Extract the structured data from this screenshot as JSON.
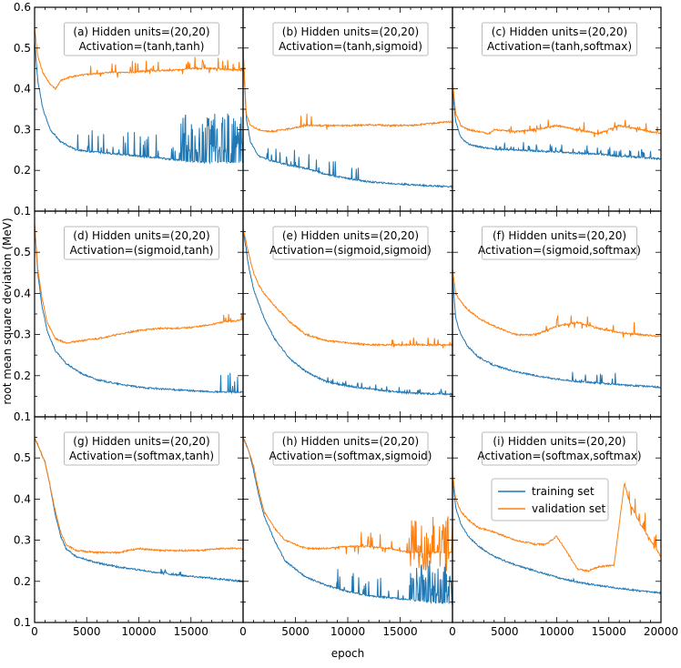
{
  "figure": {
    "ylabel": "root mean square deviation (MeV)",
    "xlabel": "epoch",
    "xticks": [
      "0",
      "5000",
      "10000",
      "15000",
      "20000"
    ],
    "yticks": [
      "0.1",
      "0.2",
      "0.3",
      "0.4",
      "0.5",
      "0.6"
    ],
    "legend": [
      "training set",
      "validation set"
    ],
    "colors": {
      "training": "#1f77b4",
      "validation": "#ff7f0e"
    }
  },
  "chart_data": [
    {
      "type": "line",
      "panel": "(a)",
      "annotation": [
        "(a) Hidden units=(20,20)",
        "Activation=(tanh,tanh)"
      ],
      "xlim": [
        0,
        20000
      ],
      "ylim": [
        0.1,
        0.6
      ],
      "series": [
        {
          "name": "training set",
          "x": [
            0,
            300,
            800,
            1500,
            2500,
            4000,
            6000,
            8000,
            10000,
            12000,
            14000,
            16000,
            18000,
            20000
          ],
          "y": [
            0.52,
            0.42,
            0.35,
            0.3,
            0.27,
            0.25,
            0.245,
            0.24,
            0.235,
            0.23,
            0.225,
            0.22,
            0.22,
            0.22
          ],
          "spikes": {
            "x": [
              4000,
              20000
            ],
            "mag": 0.06,
            "dense_from": 14000,
            "dense_mag": 0.12
          }
        },
        {
          "name": "validation set",
          "x": [
            0,
            300,
            800,
            1500,
            2000,
            2500,
            3500,
            5000,
            7000,
            9000,
            11000,
            13000,
            15000,
            17000,
            20000
          ],
          "y": [
            0.55,
            0.48,
            0.44,
            0.41,
            0.4,
            0.42,
            0.43,
            0.435,
            0.44,
            0.44,
            0.445,
            0.445,
            0.45,
            0.45,
            0.445
          ],
          "spikes": {
            "x": [
              5000,
              20000
            ],
            "mag": 0.03
          }
        }
      ]
    },
    {
      "type": "line",
      "panel": "(b)",
      "annotation": [
        "(b) Hidden units=(20,20)",
        "Activation=(tanh,sigmoid)"
      ],
      "xlim": [
        0,
        20000
      ],
      "ylim": [
        0.1,
        0.6
      ],
      "series": [
        {
          "name": "training set",
          "x": [
            0,
            300,
            700,
            1500,
            2500,
            4000,
            6000,
            8000,
            10000,
            12000,
            14000,
            16000,
            18000,
            20000
          ],
          "y": [
            0.5,
            0.33,
            0.27,
            0.235,
            0.225,
            0.215,
            0.205,
            0.19,
            0.18,
            0.172,
            0.168,
            0.165,
            0.162,
            0.16
          ],
          "spikes": {
            "x": [
              2000,
              11000
            ],
            "mag": 0.04
          }
        },
        {
          "name": "validation set",
          "x": [
            0,
            300,
            700,
            1500,
            2500,
            4000,
            6000,
            8000,
            10000,
            12000,
            14000,
            16000,
            18000,
            20000
          ],
          "y": [
            0.5,
            0.34,
            0.31,
            0.3,
            0.295,
            0.3,
            0.31,
            0.31,
            0.31,
            0.312,
            0.31,
            0.31,
            0.315,
            0.32
          ],
          "spikes": {
            "x": [
              5500,
              8000
            ],
            "mag": 0.03
          }
        }
      ]
    },
    {
      "type": "line",
      "panel": "(c)",
      "annotation": [
        "(c) Hidden units=(20,20)",
        "Activation=(tanh,softmax)"
      ],
      "xlim": [
        0,
        20000
      ],
      "ylim": [
        0.1,
        0.6
      ],
      "series": [
        {
          "name": "training set",
          "x": [
            0,
            300,
            800,
            1500,
            2500,
            4000,
            6000,
            8000,
            10000,
            12000,
            14000,
            16000,
            18000,
            20000
          ],
          "y": [
            0.4,
            0.32,
            0.28,
            0.265,
            0.258,
            0.252,
            0.25,
            0.248,
            0.245,
            0.242,
            0.24,
            0.235,
            0.232,
            0.228
          ],
          "spikes": {
            "x": [
              4000,
              20000
            ],
            "mag": 0.02
          }
        },
        {
          "name": "validation set",
          "x": [
            0,
            300,
            800,
            1500,
            2500,
            3500,
            4000,
            6000,
            8000,
            10000,
            12000,
            14000,
            16000,
            18000,
            20000
          ],
          "y": [
            0.42,
            0.34,
            0.31,
            0.3,
            0.295,
            0.29,
            0.3,
            0.295,
            0.3,
            0.31,
            0.3,
            0.29,
            0.31,
            0.3,
            0.29
          ],
          "spikes": {
            "x": [
              5000,
              20000
            ],
            "mag": 0.02
          }
        }
      ]
    },
    {
      "type": "line",
      "panel": "(d)",
      "annotation": [
        "(d) Hidden units=(20,20)",
        "Activation=(sigmoid,tanh)"
      ],
      "xlim": [
        0,
        20000
      ],
      "ylim": [
        0.1,
        0.6
      ],
      "series": [
        {
          "name": "training set",
          "x": [
            0,
            300,
            700,
            1200,
            2000,
            3000,
            4500,
            6000,
            8000,
            10000,
            12000,
            14000,
            16000,
            18000,
            20000
          ],
          "y": [
            0.57,
            0.45,
            0.37,
            0.31,
            0.26,
            0.23,
            0.205,
            0.19,
            0.18,
            0.172,
            0.168,
            0.165,
            0.162,
            0.16,
            0.16
          ],
          "spikes": {
            "x": [
              17500,
              20000
            ],
            "mag": 0.05
          }
        },
        {
          "name": "validation set",
          "x": [
            0,
            300,
            700,
            1200,
            2000,
            3000,
            4500,
            6000,
            8000,
            10000,
            12000,
            14000,
            16000,
            18000,
            20000
          ],
          "y": [
            0.57,
            0.46,
            0.39,
            0.33,
            0.29,
            0.28,
            0.285,
            0.29,
            0.3,
            0.31,
            0.315,
            0.315,
            0.32,
            0.33,
            0.335
          ],
          "spikes": {
            "x": [
              18000,
              20000
            ],
            "mag": 0.02
          }
        }
      ]
    },
    {
      "type": "line",
      "panel": "(e)",
      "annotation": [
        "(e) Hidden units=(20,20)",
        "Activation=(sigmoid,sigmoid)"
      ],
      "xlim": [
        0,
        20000
      ],
      "ylim": [
        0.1,
        0.6
      ],
      "series": [
        {
          "name": "training set",
          "x": [
            0,
            500,
            1000,
            2000,
            3000,
            4500,
            6000,
            8000,
            10000,
            12000,
            14000,
            16000,
            18000,
            20000
          ],
          "y": [
            0.56,
            0.47,
            0.41,
            0.34,
            0.29,
            0.24,
            0.21,
            0.185,
            0.175,
            0.168,
            0.162,
            0.158,
            0.156,
            0.155
          ],
          "spikes": {
            "x": [
              8000,
              20000
            ],
            "mag": 0.015
          }
        },
        {
          "name": "validation set",
          "x": [
            0,
            500,
            1000,
            1500,
            2000,
            3000,
            4500,
            6000,
            8000,
            10000,
            12000,
            14000,
            16000,
            18000,
            20000
          ],
          "y": [
            0.56,
            0.5,
            0.45,
            0.42,
            0.4,
            0.37,
            0.33,
            0.3,
            0.285,
            0.28,
            0.275,
            0.275,
            0.275,
            0.275,
            0.275
          ],
          "spikes": {
            "x": [
              14000,
              20000
            ],
            "mag": 0.02
          }
        }
      ]
    },
    {
      "type": "line",
      "panel": "(f)",
      "annotation": [
        "(f) Hidden units=(20,20)",
        "Activation=(sigmoid,softmax)"
      ],
      "xlim": [
        0,
        20000
      ],
      "ylim": [
        0.1,
        0.6
      ],
      "series": [
        {
          "name": "training set",
          "x": [
            0,
            300,
            800,
            1500,
            2500,
            4000,
            6000,
            8000,
            10000,
            12000,
            14000,
            16000,
            18000,
            20000
          ],
          "y": [
            0.45,
            0.34,
            0.3,
            0.27,
            0.245,
            0.225,
            0.21,
            0.2,
            0.192,
            0.186,
            0.182,
            0.178,
            0.175,
            0.172
          ],
          "spikes": {
            "x": [
              11000,
              16000
            ],
            "mag": 0.03
          }
        },
        {
          "name": "validation set",
          "x": [
            0,
            300,
            800,
            1500,
            2500,
            4000,
            6000,
            8000,
            10000,
            12000,
            14000,
            16000,
            18000,
            20000
          ],
          "y": [
            0.46,
            0.4,
            0.38,
            0.36,
            0.34,
            0.32,
            0.3,
            0.3,
            0.32,
            0.33,
            0.315,
            0.305,
            0.3,
            0.295
          ],
          "spikes": {
            "x": [
              9000,
              18000
            ],
            "mag": 0.03
          }
        }
      ]
    },
    {
      "type": "line",
      "panel": "(g)",
      "annotation": [
        "(g) Hidden units=(20,20)",
        "Activation=(softmax,tanh)"
      ],
      "xlim": [
        0,
        20000
      ],
      "ylim": [
        0.1,
        0.6
      ],
      "series": [
        {
          "name": "training set",
          "x": [
            0,
            500,
            1000,
            1500,
            2000,
            2500,
            3000,
            4000,
            6000,
            8000,
            10000,
            12000,
            14000,
            16000,
            18000,
            20000
          ],
          "y": [
            0.55,
            0.52,
            0.49,
            0.43,
            0.36,
            0.31,
            0.28,
            0.26,
            0.245,
            0.235,
            0.228,
            0.22,
            0.215,
            0.21,
            0.205,
            0.2
          ],
          "spikes": {
            "x": [
              12000,
              14000
            ],
            "mag": 0.01
          }
        },
        {
          "name": "validation set",
          "x": [
            0,
            500,
            1000,
            1500,
            2000,
            2500,
            3000,
            4000,
            6000,
            8000,
            9000,
            10000,
            12000,
            14000,
            16000,
            18000,
            20000
          ],
          "y": [
            0.55,
            0.52,
            0.49,
            0.43,
            0.37,
            0.32,
            0.29,
            0.275,
            0.27,
            0.27,
            0.275,
            0.28,
            0.275,
            0.275,
            0.275,
            0.28,
            0.28
          ],
          "spikes": {
            "x": [
              9000,
              10000
            ],
            "mag": 0.005
          }
        }
      ]
    },
    {
      "type": "line",
      "panel": "(h)",
      "annotation": [
        "(h) Hidden units=(20,20)",
        "Activation=(softmax,sigmoid)"
      ],
      "xlim": [
        0,
        20000
      ],
      "ylim": [
        0.1,
        0.6
      ],
      "series": [
        {
          "name": "training set",
          "x": [
            0,
            500,
            1000,
            1500,
            2000,
            3000,
            4000,
            6000,
            8000,
            10000,
            12000,
            14000,
            16000,
            18000,
            20000
          ],
          "y": [
            0.55,
            0.52,
            0.47,
            0.41,
            0.36,
            0.3,
            0.25,
            0.21,
            0.19,
            0.175,
            0.165,
            0.16,
            0.155,
            0.15,
            0.145
          ],
          "spikes": {
            "x": [
              8500,
              20000
            ],
            "mag": 0.05,
            "dense_from": 16000,
            "dense_mag": 0.1
          }
        },
        {
          "name": "validation set",
          "x": [
            0,
            500,
            1000,
            1500,
            2000,
            3000,
            4000,
            6000,
            8000,
            10000,
            12000,
            14000,
            16000,
            18000,
            20000
          ],
          "y": [
            0.55,
            0.52,
            0.48,
            0.42,
            0.37,
            0.33,
            0.3,
            0.28,
            0.28,
            0.285,
            0.285,
            0.28,
            0.27,
            0.27,
            0.27
          ],
          "spikes": {
            "x": [
              8500,
              20000
            ],
            "mag": 0.04,
            "dense_from": 16000,
            "dense_mag": 0.09
          }
        }
      ]
    },
    {
      "type": "line",
      "panel": "(i)",
      "annotation": [
        "(i) Hidden units=(20,20)",
        "Activation=(softmax,softmax)"
      ],
      "xlim": [
        0,
        20000
      ],
      "ylim": [
        0.1,
        0.6
      ],
      "series": [
        {
          "name": "training set",
          "x": [
            0,
            300,
            800,
            1500,
            2500,
            4000,
            6000,
            8000,
            10000,
            12000,
            14000,
            16000,
            18000,
            20000
          ],
          "y": [
            0.45,
            0.38,
            0.34,
            0.31,
            0.285,
            0.26,
            0.24,
            0.225,
            0.21,
            0.198,
            0.19,
            0.183,
            0.177,
            0.172
          ],
          "spikes": {
            "x": [
              11000,
              12000
            ],
            "mag": 0.01
          }
        },
        {
          "name": "validation set",
          "x": [
            0,
            300,
            800,
            1500,
            2500,
            4000,
            6000,
            8000,
            9000,
            10000,
            11000,
            12000,
            13000,
            14000,
            15500,
            16500,
            17000,
            18000,
            19000,
            20000
          ],
          "y": [
            0.47,
            0.4,
            0.37,
            0.35,
            0.33,
            0.32,
            0.3,
            0.29,
            0.29,
            0.31,
            0.27,
            0.23,
            0.225,
            0.235,
            0.24,
            0.44,
            0.39,
            0.34,
            0.3,
            0.26
          ],
          "spikes": {
            "x": [
              16500,
              20000
            ],
            "mag": 0.05
          }
        }
      ]
    }
  ]
}
